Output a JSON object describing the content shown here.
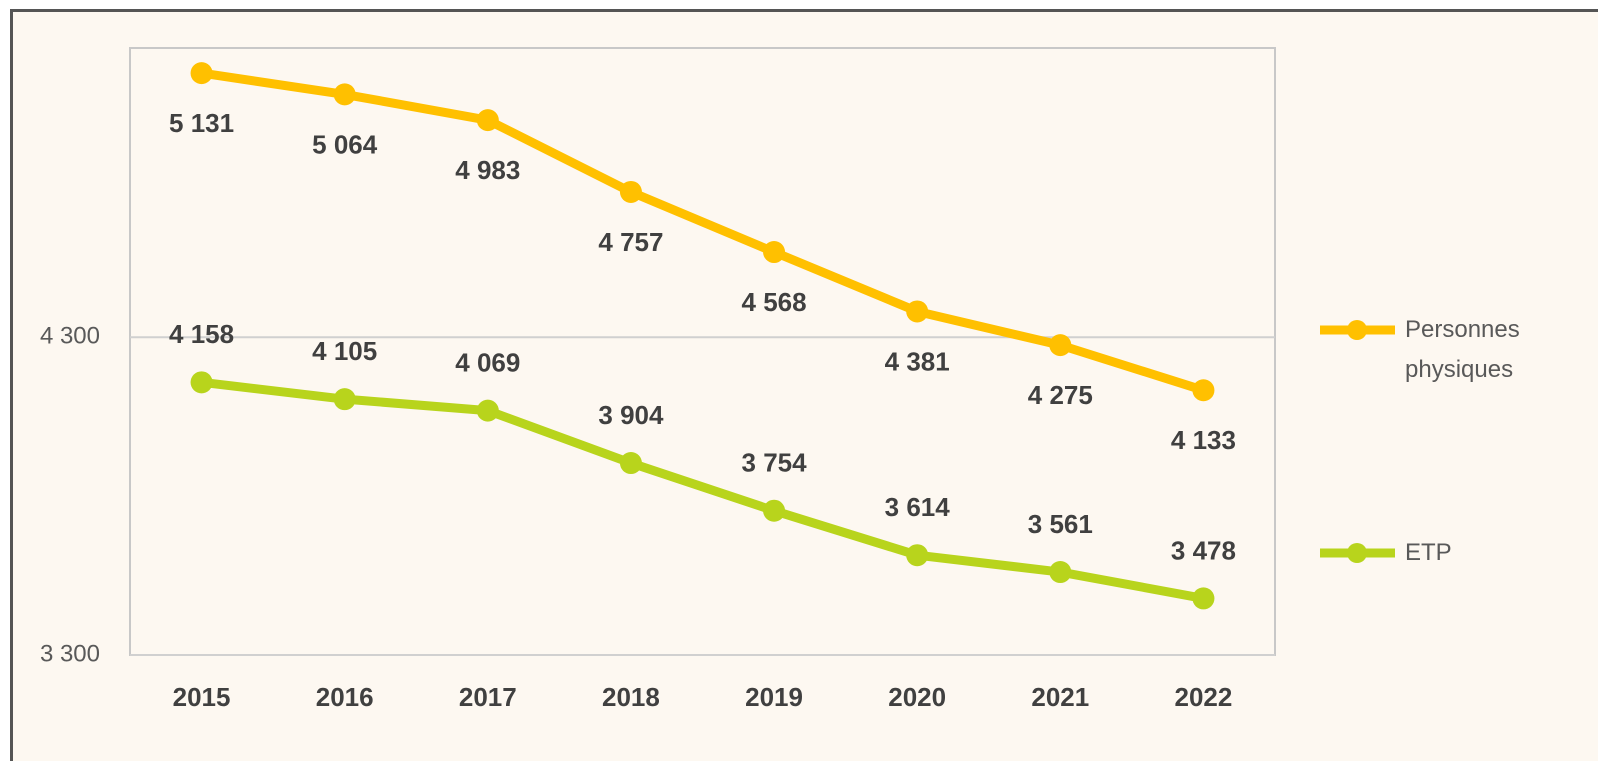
{
  "chart_data": {
    "type": "line",
    "categories": [
      "2015",
      "2016",
      "2017",
      "2018",
      "2019",
      "2020",
      "2021",
      "2022"
    ],
    "series": [
      {
        "name": "Personnes physiques",
        "color": "#ffc000",
        "values": [
          5131,
          5064,
          4983,
          4757,
          4568,
          4381,
          4275,
          4133
        ],
        "value_labels": [
          "5 131",
          "5 064",
          "4 983",
          "4 757",
          "4 568",
          "4 381",
          "4 275",
          "4 133"
        ]
      },
      {
        "name": "ETP",
        "color": "#b8d41c",
        "values": [
          4158,
          4105,
          4069,
          3904,
          3754,
          3614,
          3561,
          3478
        ],
        "value_labels": [
          "4 158",
          "4 105",
          "4 069",
          "3 904",
          "3 754",
          "3 614",
          "3 561",
          "3 478"
        ]
      }
    ],
    "ylim": [
      3300,
      5210
    ],
    "yticks": [
      {
        "value": 3300,
        "label": "3 300"
      },
      {
        "value": 4300,
        "label": "4 300"
      }
    ],
    "grid": true,
    "legend": "right"
  }
}
